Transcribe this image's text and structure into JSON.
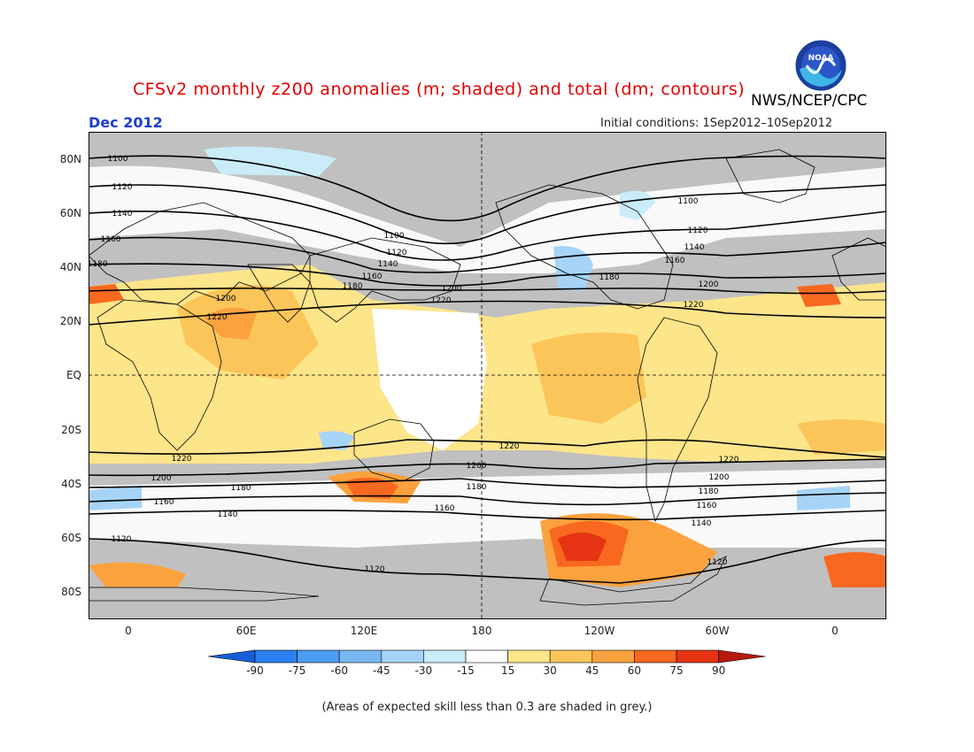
{
  "header": {
    "title": "CFSv2 monthly z200 anomalies (m; shaded) and total (dm; contours)",
    "agency": "NWS/NCEP/CPC",
    "month": "Dec 2012",
    "initial_conditions": "Initial conditions: 1Sep2012–10Sep2012",
    "logo_text": "NOAA"
  },
  "axes": {
    "lat_labels": [
      "80N",
      "60N",
      "40N",
      "20N",
      "EQ",
      "20S",
      "40S",
      "60S",
      "80S"
    ],
    "lon_labels": [
      "0",
      "60E",
      "120E",
      "180",
      "120W",
      "60W",
      "0"
    ]
  },
  "contour_labels": [
    "1100",
    "1120",
    "1140",
    "1160",
    "1180",
    "1200",
    "1220"
  ],
  "colorbar": {
    "values": [
      "-90",
      "-75",
      "-60",
      "-45",
      "-30",
      "-15",
      "15",
      "30",
      "45",
      "60",
      "75",
      "90"
    ],
    "colors": [
      "#1560d8",
      "#2a80f0",
      "#4d9bf2",
      "#79b7f4",
      "#a6d4f8",
      "#c9ecf8",
      "#ffffff",
      "#fde58a",
      "#fcc55a",
      "#fba23e",
      "#f9681f",
      "#e63313",
      "#b81a0f"
    ]
  },
  "footnote": "(Areas of expected skill less than 0.3 are shaded in grey.)"
}
